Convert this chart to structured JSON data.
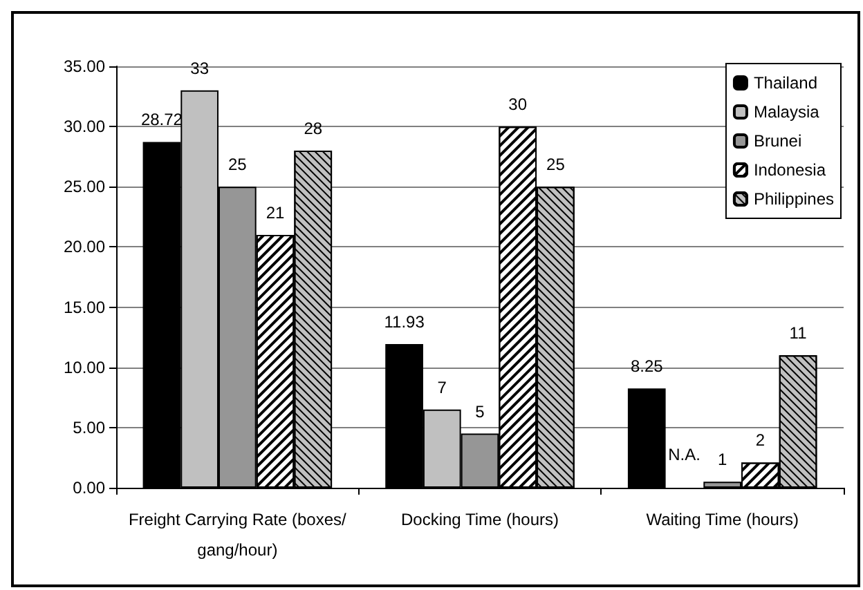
{
  "chart_data": {
    "type": "bar",
    "categories": [
      "Freight Carrying Rate (boxes/gang/hour)",
      "Docking Time (hours)",
      "Waiting Time (hours)"
    ],
    "series": [
      {
        "name": "Thailand",
        "color": "#000000",
        "values": [
          28.72,
          11.93,
          8.25
        ],
        "value_labels": [
          "28.72",
          "11.93",
          "8.25"
        ]
      },
      {
        "name": "Malaysia",
        "color": "#c0c0c0",
        "values": [
          33,
          6.5,
          null
        ],
        "value_labels": [
          "33",
          "7",
          "N.A."
        ]
      },
      {
        "name": "Brunei",
        "color": "#969696",
        "values": [
          25,
          4.5,
          0.5
        ],
        "value_labels": [
          "25",
          "5",
          "1"
        ]
      },
      {
        "name": "Indonesia",
        "color": "#ffffff",
        "values": [
          21,
          30,
          2.1
        ],
        "value_labels": [
          "21",
          "30",
          "2"
        ]
      },
      {
        "name": "Philippines",
        "color": "#c0c0c0",
        "values": [
          28,
          25,
          11
        ],
        "value_labels": [
          "28",
          "25",
          "11"
        ]
      }
    ],
    "ylim": [
      0,
      35
    ],
    "yticks": [
      {
        "value": 0,
        "label": "0.00"
      },
      {
        "value": 5,
        "label": "5.00"
      },
      {
        "value": 10,
        "label": "10.00"
      },
      {
        "value": 15,
        "label": "15.00"
      },
      {
        "value": 20,
        "label": "20.00"
      },
      {
        "value": 25,
        "label": "25.00"
      },
      {
        "value": 30,
        "label": "30.00"
      },
      {
        "value": 35,
        "label": "35.00"
      }
    ],
    "grid": "y",
    "legend": "top right"
  }
}
